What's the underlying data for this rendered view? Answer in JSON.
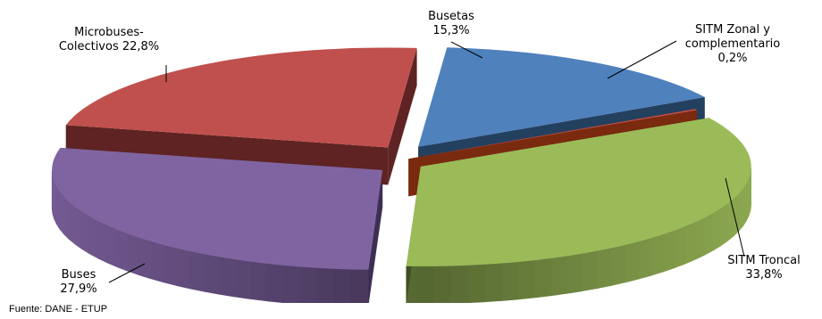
{
  "chart_data": {
    "type": "pie",
    "title": "",
    "slices": [
      {
        "label_lines": [
          "Busetas",
          "15,3%"
        ],
        "name": "Busetas",
        "value": 15.3,
        "color": "#4f81bd"
      },
      {
        "label_lines": [
          "SITM Zonal y",
          "complementario",
          "0,2%"
        ],
        "name": "SITM Zonal y complementario",
        "value": 0.2,
        "color": "#c0504d"
      },
      {
        "label_lines": [
          "SITM Troncal",
          "33,8%"
        ],
        "name": "SITM Troncal",
        "value": 33.8,
        "color": "#9bbb59"
      },
      {
        "label_lines": [
          "Buses",
          "27,9%"
        ],
        "name": "Buses",
        "value": 27.9,
        "color": "#8064a2"
      },
      {
        "label_lines": [
          "Microbuses-",
          "Colectivos 22,8%"
        ],
        "name": "Microbuses-Colectivos",
        "value": 22.8,
        "color": "#c0504d"
      }
    ]
  },
  "source": "Fuente: DANE - ETUP"
}
